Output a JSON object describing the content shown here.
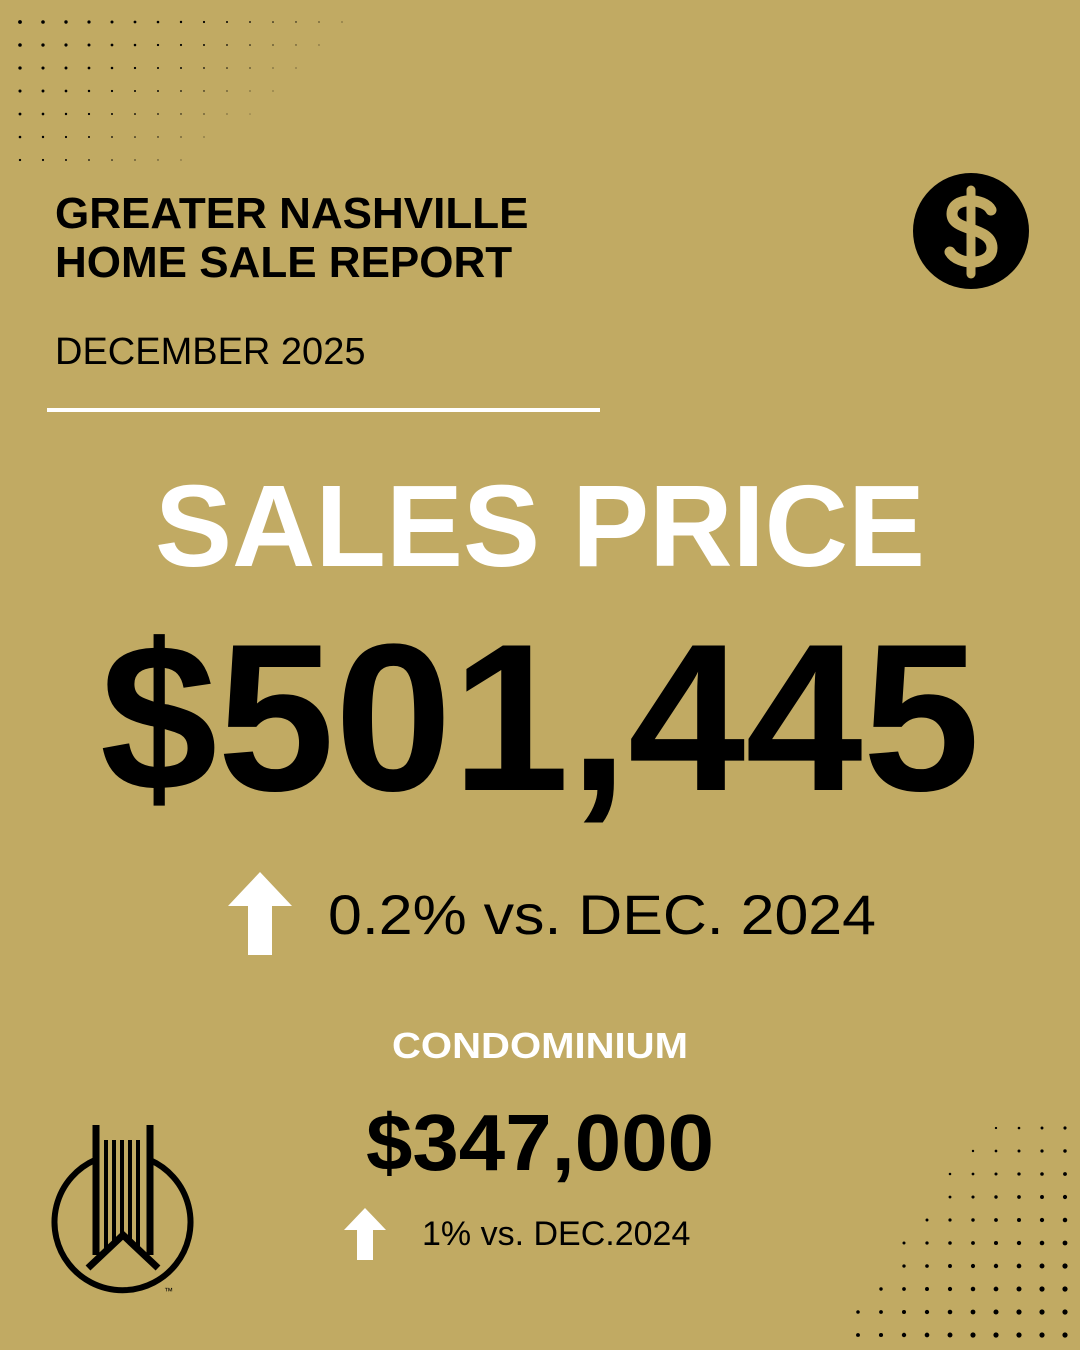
{
  "header": {
    "title_lines": [
      "GREATER NASHVILLE",
      "HOME SALE REPORT"
    ],
    "date": "DECEMBER 2025"
  },
  "headline": {
    "label": "SALES PRICE",
    "value": "$501,445",
    "change": "0.2% vs. DEC. 2024"
  },
  "condominium": {
    "label": "CONDOMINIUM",
    "value": "$347,000",
    "change": "1% vs. DEC.2024"
  },
  "logo": {
    "trademark": "™"
  }
}
